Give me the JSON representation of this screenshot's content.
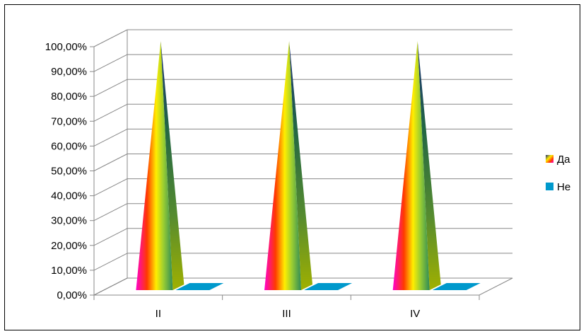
{
  "chart_data": {
    "type": "bar",
    "style": "3d-pyramid",
    "categories": [
      "II",
      "III",
      "IV"
    ],
    "series": [
      {
        "name": "Да",
        "values": [
          100,
          100,
          100
        ]
      },
      {
        "name": "Не",
        "values": [
          0,
          0,
          0
        ]
      }
    ],
    "y_unit": "percent",
    "ylim": [
      0,
      100
    ],
    "y_ticks": [
      "0,00%",
      "10,00%",
      "20,00%",
      "30,00%",
      "40,00%",
      "50,00%",
      "60,00%",
      "70,00%",
      "80,00%",
      "90,00%",
      "100,00%"
    ],
    "grid": true,
    "legend_position": "right",
    "colors": {
      "ne": "#0099cc",
      "gridline": "#888888",
      "axis": "#888888",
      "pyramid_gradient": [
        "#ff00cc",
        "#ff4400",
        "#ffee00",
        "#88cc00",
        "#226644",
        "#1a2a7a"
      ]
    }
  }
}
